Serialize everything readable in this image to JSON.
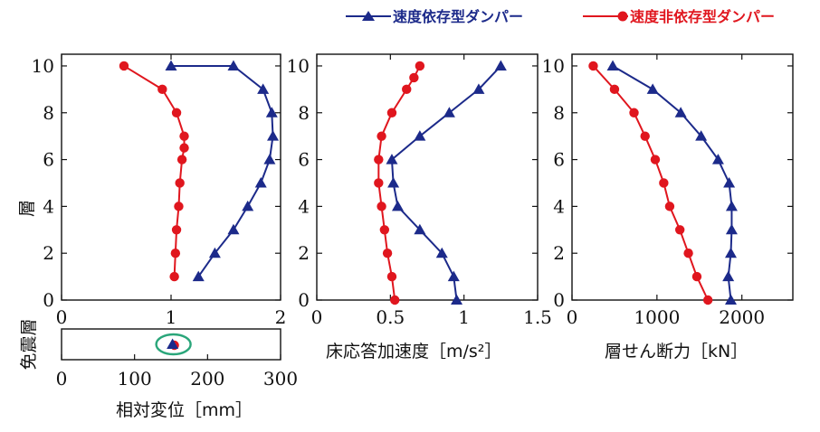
{
  "chart_data": [
    {
      "type": "line",
      "panel": "displacement",
      "xlabel": "相対変位［mm］",
      "ylabel": "層",
      "xlim": [
        0,
        2
      ],
      "ylim": [
        0,
        10.5
      ],
      "xticks": [
        "0",
        "1",
        "2"
      ],
      "yticks": [
        "0",
        "2",
        "4",
        "6",
        "8",
        "10"
      ],
      "series": [
        {
          "name": "速度依存型ダンパー",
          "color": "#1c2a8a",
          "marker": "triangle",
          "x": [
            1.25,
            1.4,
            1.57,
            1.7,
            1.82,
            1.9,
            1.93,
            1.92,
            1.84,
            1.57,
            1.0
          ],
          "y": [
            1,
            2,
            3,
            4,
            5,
            6,
            7,
            8,
            9,
            10,
            10
          ]
        },
        {
          "name": "速度非依存型ダンパー",
          "color": "#e0161e",
          "marker": "circle",
          "x": [
            1.03,
            1.04,
            1.05,
            1.07,
            1.08,
            1.1,
            1.12,
            1.12,
            1.05,
            0.92,
            0.57
          ],
          "y": [
            1,
            2,
            3,
            4,
            5,
            6,
            6.5,
            7,
            8,
            9,
            10
          ]
        }
      ]
    },
    {
      "type": "line",
      "panel": "acceleration",
      "xlabel": "床応答加速度［m/s²］",
      "xlim": [
        0,
        1.5
      ],
      "ylim": [
        0,
        10.5
      ],
      "xticks": [
        "0",
        "0.5",
        "1",
        "1.5"
      ],
      "yticks": [
        "0",
        "2",
        "4",
        "6",
        "8",
        "10"
      ],
      "series": [
        {
          "name": "速度依存型ダンパー",
          "color": "#1c2a8a",
          "marker": "triangle",
          "x": [
            0.95,
            0.93,
            0.85,
            0.7,
            0.55,
            0.52,
            0.51,
            0.7,
            0.9,
            1.1,
            1.25
          ],
          "y": [
            0,
            1,
            2,
            3,
            4,
            5,
            6,
            7,
            8,
            9,
            10
          ]
        },
        {
          "name": "速度非依存型ダンパー",
          "color": "#e0161e",
          "marker": "circle",
          "x": [
            0.53,
            0.51,
            0.48,
            0.46,
            0.44,
            0.42,
            0.42,
            0.44,
            0.51,
            0.61,
            0.66,
            0.7
          ],
          "y": [
            0,
            1,
            2,
            3,
            4,
            5,
            6,
            7,
            8,
            9,
            9.5,
            10
          ]
        }
      ]
    },
    {
      "type": "line",
      "panel": "shear",
      "xlabel": "層せん断力［kN］",
      "xlim": [
        0,
        2600
      ],
      "ylim": [
        0,
        10.5
      ],
      "xticks": [
        "0",
        "1000",
        "2000"
      ],
      "yticks": [
        "0",
        "2",
        "4",
        "6",
        "8",
        "10"
      ],
      "series": [
        {
          "name": "速度依存型ダンパー",
          "color": "#1c2a8a",
          "marker": "triangle",
          "x": [
            1870,
            1840,
            1870,
            1880,
            1880,
            1850,
            1720,
            1520,
            1280,
            950,
            480
          ],
          "y": [
            0,
            1,
            2,
            3,
            4,
            5,
            6,
            7,
            8,
            9,
            10
          ]
        },
        {
          "name": "速度非依存型ダンパー",
          "color": "#e0161e",
          "marker": "circle",
          "x": [
            1600,
            1470,
            1370,
            1270,
            1150,
            1080,
            980,
            860,
            730,
            500,
            250
          ],
          "y": [
            0,
            1,
            2,
            3,
            4,
            5,
            6,
            7,
            8,
            9,
            10
          ]
        }
      ]
    },
    {
      "type": "scatter",
      "panel": "isolation-layer",
      "row_label": "免震層",
      "xlim": [
        0,
        300
      ],
      "xticks": [
        "0",
        "100",
        "200",
        "300"
      ],
      "series": [
        {
          "name": "速度依存型ダンパー",
          "color": "#1c2a8a",
          "marker": "triangle",
          "x": [
            152
          ]
        },
        {
          "name": "速度非依存型ダンパー",
          "color": "#e0161e",
          "marker": "circle",
          "x": [
            152
          ]
        }
      ],
      "highlight_color": "#2aa67a"
    }
  ],
  "legend": {
    "placement": "top-right",
    "items": [
      {
        "label": "速度依存型ダンパー",
        "color": "#1c2a8a",
        "marker": "triangle"
      },
      {
        "label": "速度非依存型ダンパー",
        "color": "#e0161e",
        "marker": "circle"
      }
    ]
  },
  "colors": {
    "blue": "#1c2a8a",
    "red": "#e0161e",
    "axis": "#111111"
  }
}
